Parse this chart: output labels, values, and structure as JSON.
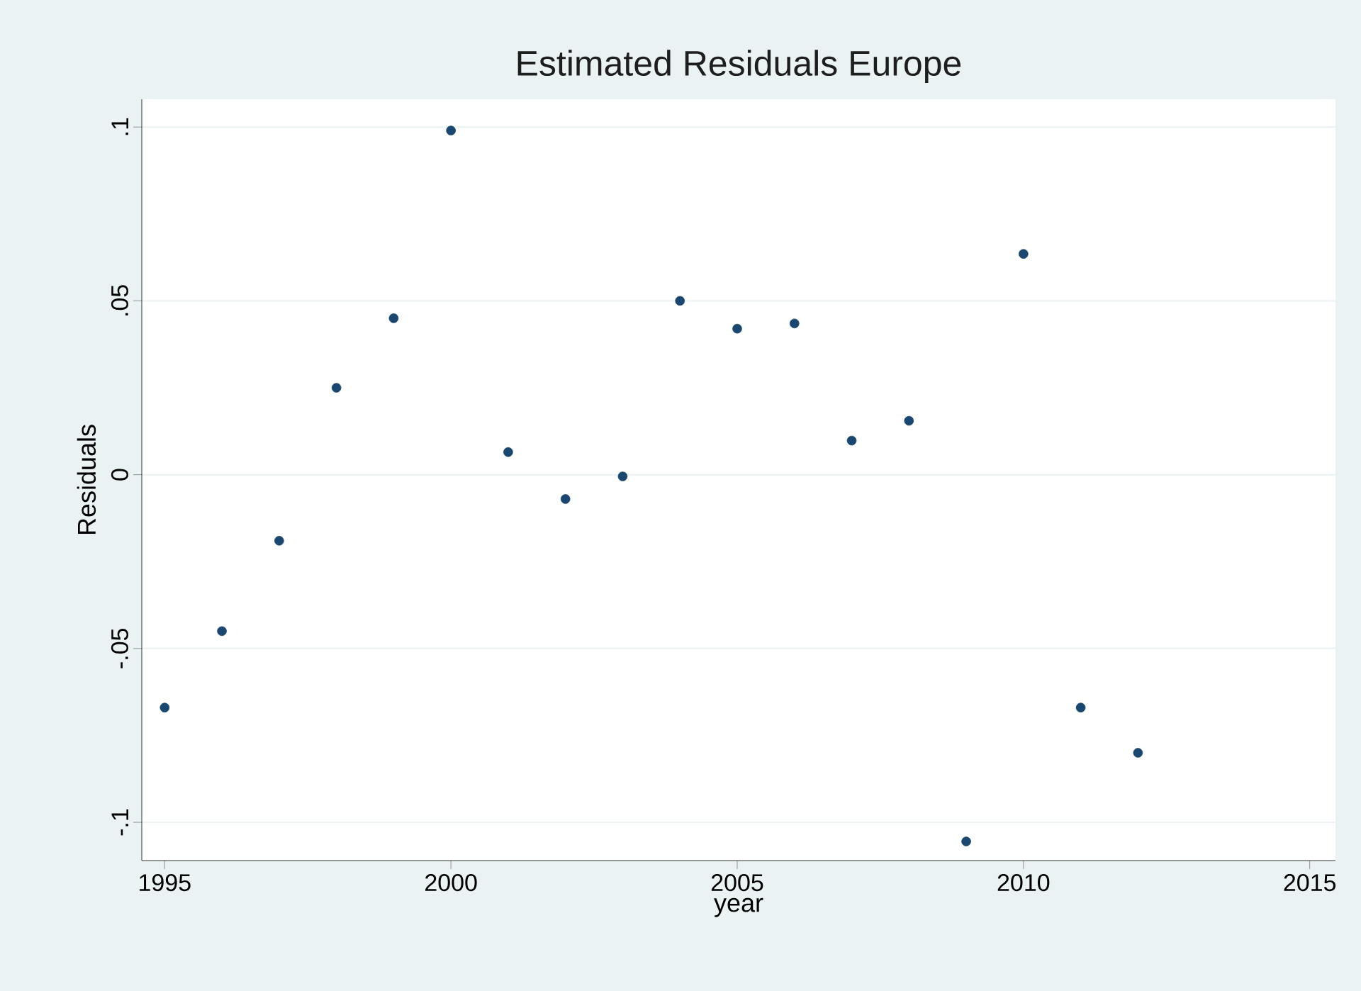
{
  "chart_data": {
    "type": "scatter",
    "title": "Estimated Residuals Europe",
    "xlabel": "year",
    "ylabel": "Residuals",
    "x": [
      1995,
      1996,
      1997,
      1998,
      1999,
      2000,
      2001,
      2002,
      2003,
      2004,
      2005,
      2006,
      2007,
      2008,
      2009,
      2010,
      2011,
      2012
    ],
    "series": [
      {
        "color": "#1a476f",
        "values": [
          -0.067,
          -0.045,
          -0.019,
          0.025,
          0.045,
          0.099,
          0.0065,
          -0.007,
          -0.0005,
          0.05,
          0.042,
          0.0435,
          0.0098,
          0.0155,
          -0.1055,
          0.0635,
          -0.067,
          -0.08
        ]
      }
    ],
    "xlim": [
      1994.6,
      2015.45
    ],
    "ylim": [
      -0.111,
      0.108
    ],
    "xticks": [
      1995,
      2000,
      2005,
      2010,
      2015
    ],
    "yticks": [
      {
        "value": -0.1,
        "label": "-.1"
      },
      {
        "value": -0.05,
        "label": "-.05"
      },
      {
        "value": 0,
        "label": "0"
      },
      {
        "value": 0.05,
        "label": ".05"
      },
      {
        "value": 0.1,
        "label": ".1"
      }
    ],
    "grid": "y",
    "marker": "circle"
  }
}
